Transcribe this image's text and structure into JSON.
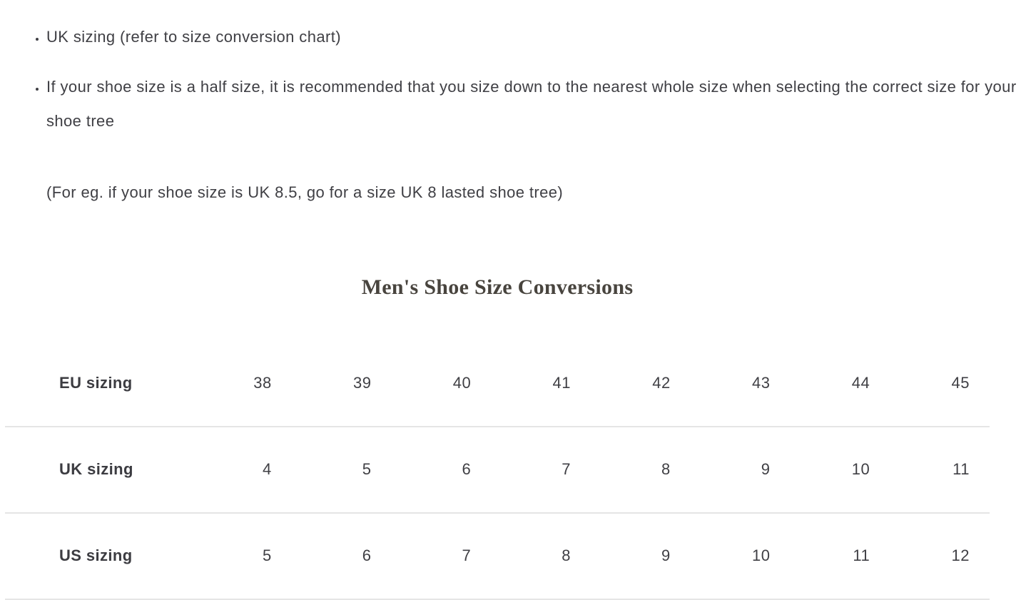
{
  "bullets": [
    {
      "text": "UK sizing (refer to size conversion chart)"
    },
    {
      "text": "If your shoe size is a half size, it is recommended that you size down to the nearest whole size when selecting the correct size for your shoe tree",
      "note": "(For eg. if your shoe size is UK 8.5, go for a size UK 8 lasted shoe tree)"
    }
  ],
  "table": {
    "title": "Men's Shoe Size Conversions",
    "rows": [
      {
        "label": "EU sizing",
        "values": [
          "38",
          "39",
          "40",
          "41",
          "42",
          "43",
          "44",
          "45"
        ]
      },
      {
        "label": "UK sizing",
        "values": [
          "4",
          "5",
          "6",
          "7",
          "8",
          "9",
          "10",
          "11"
        ]
      },
      {
        "label": "US sizing",
        "values": [
          "5",
          "6",
          "7",
          "8",
          "9",
          "10",
          "11",
          "12"
        ]
      }
    ]
  },
  "colors": {
    "text": "#3f3f44",
    "heading": "#48443e",
    "divider": "#e5e5e5",
    "background": "#ffffff"
  }
}
